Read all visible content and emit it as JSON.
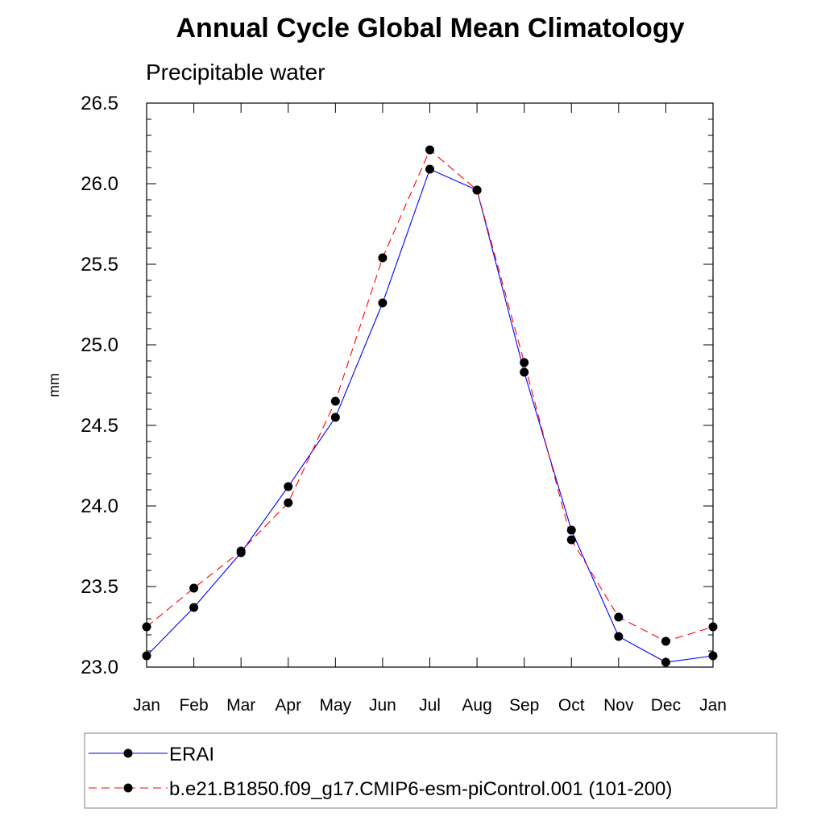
{
  "chart_data": {
    "type": "line",
    "title": "Annual Cycle Global Mean Climatology",
    "subtitle": "Precipitable water",
    "xlabel": "",
    "ylabel": "mm",
    "categories": [
      "Jan",
      "Feb",
      "Mar",
      "Apr",
      "May",
      "Jun",
      "Jul",
      "Aug",
      "Sep",
      "Oct",
      "Nov",
      "Dec",
      "Jan"
    ],
    "ylim": [
      23.0,
      26.5
    ],
    "yticks": [
      "23.0",
      "23.5",
      "24.0",
      "24.5",
      "25.0",
      "25.5",
      "26.0",
      "26.5"
    ],
    "grid": false,
    "legend_position": "bottom",
    "series": [
      {
        "name": "ERAI",
        "color": "#0000ff",
        "style": "solid",
        "marker": "filled-circle",
        "values": [
          23.07,
          23.37,
          23.71,
          24.12,
          24.55,
          25.26,
          26.09,
          25.96,
          24.83,
          23.85,
          23.19,
          23.03,
          23.07
        ]
      },
      {
        "name": "b.e21.B1850.f09_g17.CMIP6-esm-piControl.001 (101-200)",
        "color": "#ff0000",
        "style": "dashed",
        "marker": "filled-circle",
        "values": [
          23.25,
          23.49,
          23.72,
          24.02,
          24.65,
          25.54,
          26.21,
          25.96,
          24.89,
          23.79,
          23.31,
          23.16,
          23.25
        ]
      }
    ]
  }
}
